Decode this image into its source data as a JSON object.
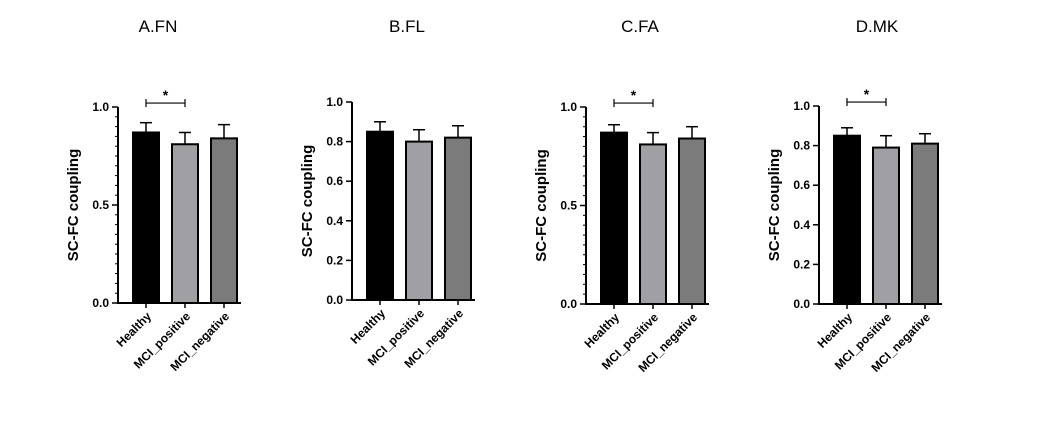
{
  "chart_data": [
    {
      "type": "bar",
      "title": "A.FN",
      "ylabel": "SC-FC coupling",
      "categories": [
        "Healthy",
        "MCI_positive",
        "MCI_negative"
      ],
      "values": [
        0.87,
        0.81,
        0.84
      ],
      "errors": [
        0.05,
        0.06,
        0.07
      ],
      "colors": [
        "#000000",
        "#a0a0a4",
        "#7b7b7b"
      ],
      "ylim": [
        0,
        1.0
      ],
      "yticks": [
        0.0,
        0.5,
        1.0
      ],
      "tick_labels": [
        "0.0",
        "0.5",
        "1.0"
      ],
      "minor_ticks": 10,
      "significance": [
        {
          "from": 0,
          "to": 1,
          "label": "*",
          "y": 1.02
        }
      ]
    },
    {
      "type": "bar",
      "title": "B.FL",
      "ylabel": "SC-FC coupling",
      "categories": [
        "Healthy",
        "MCI_positive",
        "MCI_negative"
      ],
      "values": [
        0.85,
        0.8,
        0.82
      ],
      "errors": [
        0.05,
        0.06,
        0.06
      ],
      "colors": [
        "#000000",
        "#a0a0a4",
        "#7b7b7b"
      ],
      "ylim": [
        0,
        1.0
      ],
      "yticks": [
        0.0,
        0.2,
        0.4,
        0.6,
        0.8,
        1.0
      ],
      "tick_labels": [
        "0.0",
        "0.2",
        "0.4",
        "0.6",
        "0.8",
        "1.0"
      ],
      "minor_ticks": 0,
      "significance": []
    },
    {
      "type": "bar",
      "title": "C.FA",
      "ylabel": "SC-FC coupling",
      "categories": [
        "Healthy",
        "MCI_positive",
        "MCI_negative"
      ],
      "values": [
        0.87,
        0.81,
        0.84
      ],
      "errors": [
        0.04,
        0.06,
        0.06
      ],
      "colors": [
        "#000000",
        "#a0a0a4",
        "#7b7b7b"
      ],
      "ylim": [
        0,
        1.0
      ],
      "yticks": [
        0.0,
        0.5,
        1.0
      ],
      "tick_labels": [
        "0.0",
        "0.5",
        "1.0"
      ],
      "minor_ticks": 10,
      "significance": [
        {
          "from": 0,
          "to": 1,
          "label": "*",
          "y": 1.02
        }
      ]
    },
    {
      "type": "bar",
      "title": "D.MK",
      "ylabel": "SC-FC coupling",
      "categories": [
        "Healthy",
        "MCI_positive",
        "MCI_negative"
      ],
      "values": [
        0.85,
        0.79,
        0.81
      ],
      "errors": [
        0.04,
        0.06,
        0.05
      ],
      "colors": [
        "#000000",
        "#a0a0a4",
        "#7b7b7b"
      ],
      "ylim": [
        0,
        1.0
      ],
      "yticks": [
        0.0,
        0.2,
        0.4,
        0.6,
        0.8,
        1.0
      ],
      "tick_labels": [
        "0.0",
        "0.2",
        "0.4",
        "0.6",
        "0.8",
        "1.0"
      ],
      "minor_ticks": 0,
      "significance": [
        {
          "from": 0,
          "to": 1,
          "label": "*",
          "y": 1.02
        }
      ]
    }
  ]
}
